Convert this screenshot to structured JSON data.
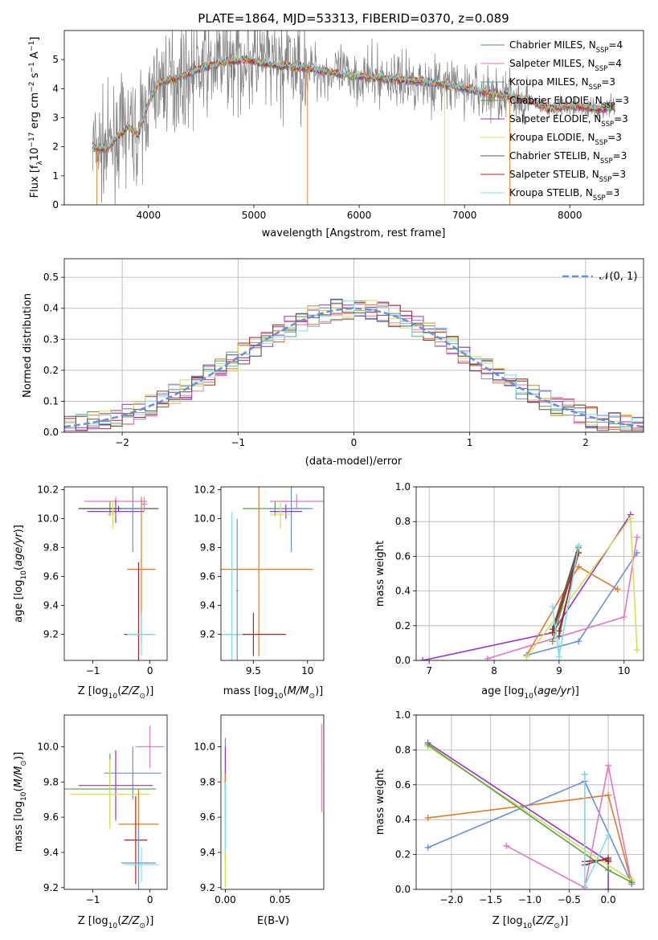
{
  "figure_title": "PLATE=1864, MJD=53313, FIBERID=0370, z=0.089",
  "colors": {
    "Chabrier MILES": "#4e8f8f",
    "Salpeter MILES": "#ff69b4",
    "Kroupa MILES": "#5f9ea0",
    "Chabrier ELODIE": "#6b8e23",
    "Salpeter ELODIE": "#9932cc",
    "Kroupa ELODIE": "#d4e157",
    "Chabrier STELIB": "#555555",
    "Salpeter STELIB": "#b22222",
    "Kroupa STELIB": "#80deea",
    "orange": "#e07b2a",
    "blue": "#6a8fd8",
    "pink": "#e377c2",
    "green": "#5a9e4a",
    "data_gray": "#808080"
  },
  "chart_data": [
    {
      "id": "spectrum",
      "type": "line",
      "xlabel": "wavelength [Angstrom, rest frame]",
      "ylabel": "Flux [f_λ10^-17 erg cm^-2 s^-1 A^-1]",
      "xlim": [
        3200,
        8700
      ],
      "ylim": [
        0,
        6
      ],
      "xticks": [
        4000,
        5000,
        6000,
        7000,
        8000
      ],
      "yticks": [
        0,
        1,
        2,
        3,
        4,
        5
      ],
      "legend_position": "right",
      "legend": [
        {
          "name": "Chabrier MILES",
          "sub": "SSP",
          "n": "4"
        },
        {
          "name": "Salpeter MILES",
          "sub": "SSP",
          "n": "4"
        },
        {
          "name": "Kroupa MILES",
          "sub": "SSP",
          "n": "3"
        },
        {
          "name": "Chabrier ELODIE",
          "sub": "SSP",
          "n": "3"
        },
        {
          "name": "Salpeter ELODIE",
          "sub": "SSP",
          "n": "3"
        },
        {
          "name": "Kroupa ELODIE",
          "sub": "SSP",
          "n": "3"
        },
        {
          "name": "Chabrier STELIB",
          "sub": "SSP",
          "n": "3"
        },
        {
          "name": "Salpeter STELIB",
          "sub": "SSP",
          "n": "3"
        },
        {
          "name": "Kroupa STELIB",
          "sub": "SSP",
          "n": "3"
        }
      ],
      "continuum": [
        [
          3470,
          2.0
        ],
        [
          3600,
          1.9
        ],
        [
          3700,
          2.3
        ],
        [
          3800,
          2.7
        ],
        [
          3900,
          2.4
        ],
        [
          4000,
          3.5
        ],
        [
          4100,
          4.2
        ],
        [
          4300,
          4.4
        ],
        [
          4500,
          4.7
        ],
        [
          4700,
          4.9
        ],
        [
          4900,
          5.0
        ],
        [
          5200,
          4.8
        ],
        [
          5500,
          4.7
        ],
        [
          5800,
          4.5
        ],
        [
          6100,
          4.4
        ],
        [
          6400,
          4.3
        ],
        [
          6700,
          4.2
        ],
        [
          7000,
          4.0
        ],
        [
          7300,
          3.8
        ],
        [
          7600,
          3.6
        ],
        [
          7800,
          3.3
        ],
        [
          8000,
          3.4
        ],
        [
          8300,
          3.3
        ],
        [
          8430,
          3.4
        ]
      ]
    },
    {
      "id": "residuals",
      "type": "histogram",
      "xlabel": "(data-model)/error",
      "ylabel": "Normed distribution",
      "xlim": [
        -2.5,
        2.5
      ],
      "ylim": [
        0,
        0.56
      ],
      "xticks": [
        -2,
        -1,
        0,
        1,
        2
      ],
      "yticks": [
        0.0,
        0.1,
        0.2,
        0.3,
        0.4,
        0.5
      ],
      "grid": true,
      "legend_position": "top-right",
      "legend": "𝒩(0, 1)"
    },
    {
      "id": "age_vs_Z",
      "type": "errorbar",
      "xlabel": "Z [log10(Z/Z⊙)]",
      "ylabel": "age  [log10(age/yr)]",
      "xlim": [
        -1.5,
        0.3
      ],
      "ylim": [
        9.02,
        10.22
      ],
      "xticks": [
        -1,
        0
      ],
      "yticks": [
        9.2,
        9.4,
        9.6,
        9.8,
        10.0,
        10.2
      ]
    },
    {
      "id": "age_vs_mass",
      "type": "errorbar",
      "xlabel": "mass [log10(M/M⊙)]",
      "xlim": [
        9.2,
        10.15
      ],
      "ylim": [
        9.02,
        10.22
      ],
      "xticks": [
        9.5,
        10.0
      ],
      "yticks": [
        9.2,
        9.4,
        9.6,
        9.8,
        10.0,
        10.2
      ]
    },
    {
      "id": "weight_vs_age",
      "type": "line",
      "xlabel": "age  [log10(age/yr)]",
      "ylabel": "mass weight",
      "xlim": [
        6.8,
        10.3
      ],
      "ylim": [
        0,
        1
      ],
      "xticks": [
        7,
        8,
        9,
        10
      ],
      "yticks": [
        0.0,
        0.2,
        0.4,
        0.6,
        0.8,
        1.0
      ],
      "grid": true,
      "series": [
        {
          "color": "#9932cc",
          "x": [
            6.9,
            8.9,
            10.1
          ],
          "y": [
            0.0,
            0.16,
            0.84
          ]
        },
        {
          "color": "#e07b2a",
          "x": [
            8.5,
            9.3,
            9.9
          ],
          "y": [
            0.03,
            0.54,
            0.41
          ]
        },
        {
          "color": "#6a8fd8",
          "x": [
            8.5,
            9.3,
            10.2
          ],
          "y": [
            0.03,
            0.11,
            0.62
          ]
        },
        {
          "color": "#e377c2",
          "x": [
            7.9,
            10.0,
            10.2
          ],
          "y": [
            0.01,
            0.25,
            0.71
          ]
        },
        {
          "color": "#d4e157",
          "x": [
            8.5,
            10.1,
            10.2
          ],
          "y": [
            0.02,
            0.82,
            0.06
          ]
        },
        {
          "color": "#5a9e4a",
          "x": [
            8.9,
            9.3,
            8.9
          ],
          "y": [
            0.11,
            0.65,
            0.18
          ]
        },
        {
          "color": "#555555",
          "x": [
            9.0,
            9.3,
            8.9
          ],
          "y": [
            0.14,
            0.66,
            0.18
          ]
        },
        {
          "color": "#b22222",
          "x": [
            8.9,
            9.3,
            9.0
          ],
          "y": [
            0.16,
            0.62,
            0.17
          ]
        },
        {
          "color": "#80deea",
          "x": [
            8.9,
            9.0,
            9.3
          ],
          "y": [
            0.31,
            0.02,
            0.66
          ]
        }
      ]
    },
    {
      "id": "mass_vs_Z",
      "type": "errorbar",
      "xlabel": "Z [log10(Z/Z⊙)]",
      "ylabel": "mass [log10(M/M⊙)]",
      "xlim": [
        -1.5,
        0.3
      ],
      "ylim": [
        9.19,
        10.18
      ],
      "xticks": [
        -1,
        0
      ],
      "yticks": [
        9.2,
        9.4,
        9.6,
        9.8,
        10.0
      ]
    },
    {
      "id": "mass_vs_ebv",
      "type": "errorbar",
      "xlabel": "E(B-V)",
      "xlim": [
        -0.004,
        0.09
      ],
      "ylim": [
        9.19,
        10.18
      ],
      "xticks": [
        0.0,
        0.05
      ],
      "yticks": [
        9.2,
        9.4,
        9.6,
        9.8,
        10.0
      ]
    },
    {
      "id": "weight_vs_Z",
      "type": "line",
      "xlabel": "Z [log10(Z/Z⊙)]",
      "ylabel": "mass weight",
      "xlim": [
        -2.45,
        0.45
      ],
      "ylim": [
        0,
        1
      ],
      "xticks": [
        -2.0,
        -1.5,
        -1.0,
        -0.5,
        0.0
      ],
      "yticks": [
        0.0,
        0.2,
        0.4,
        0.6,
        0.8,
        1.0
      ],
      "grid": true,
      "series": [
        {
          "color": "#9932cc",
          "x": [
            -2.3,
            0.0,
            0.0
          ],
          "y": [
            0.84,
            0.16,
            0.0
          ]
        },
        {
          "color": "#e07b2a",
          "x": [
            -2.3,
            0.0,
            0.3
          ],
          "y": [
            0.41,
            0.54,
            0.03
          ]
        },
        {
          "color": "#6a8fd8",
          "x": [
            -2.3,
            -0.3,
            0.3
          ],
          "y": [
            0.24,
            0.62,
            0.03
          ]
        },
        {
          "color": "#e377c2",
          "x": [
            -1.3,
            -0.3,
            0.0,
            0.3
          ],
          "y": [
            0.25,
            0.01,
            0.71,
            0.03
          ]
        },
        {
          "color": "#d4e157",
          "x": [
            -2.3,
            0.3,
            0.3
          ],
          "y": [
            0.82,
            0.05,
            0.06
          ]
        },
        {
          "color": "#5a9e4a",
          "x": [
            -2.3,
            0.0,
            0.3
          ],
          "y": [
            0.83,
            0.11,
            0.04
          ]
        },
        {
          "color": "#555555",
          "x": [
            -0.3,
            -0.3,
            0.0
          ],
          "y": [
            0.66,
            0.14,
            0.18
          ]
        },
        {
          "color": "#b22222",
          "x": [
            -0.3,
            0.0,
            0.0
          ],
          "y": [
            0.16,
            0.17,
            0.16
          ]
        },
        {
          "color": "#80deea",
          "x": [
            -0.3,
            -0.3,
            0.0
          ],
          "y": [
            0.66,
            0.02,
            0.31
          ]
        }
      ]
    }
  ]
}
